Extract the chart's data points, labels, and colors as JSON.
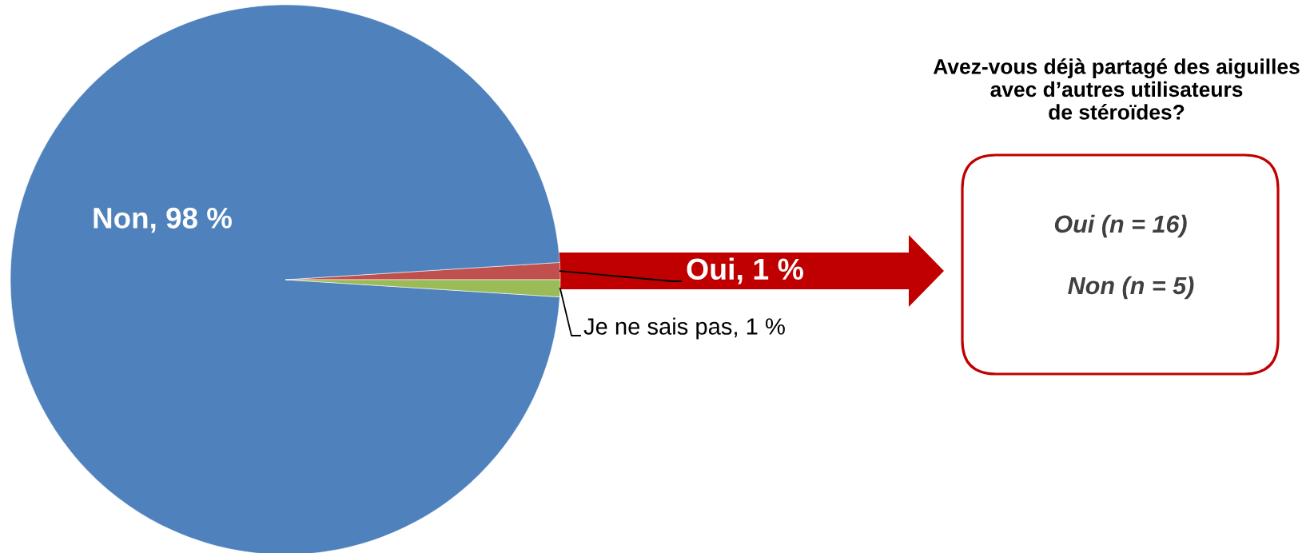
{
  "chart_data": [
    {
      "type": "pie",
      "categories": [
        "Oui",
        "Non",
        "Je ne sais pas"
      ],
      "values": [
        1,
        98,
        1
      ],
      "colors": [
        "#c0504d",
        "#4f81bd",
        "#9bbb59"
      ],
      "value_labels": [
        "1 %",
        "98 %",
        "1 %"
      ]
    },
    {
      "type": "other",
      "title": "Avez-vous déjà partagé des aiguilles\navec d’autres utilisateurs\nde stéroïdes?",
      "annotations": [
        "Oui (n = 16)",
        "Non (n = 5)"
      ]
    }
  ]
}
